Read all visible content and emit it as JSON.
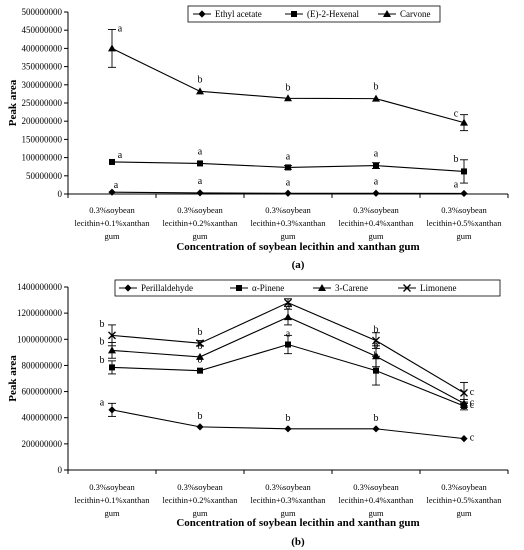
{
  "chart_data": [
    {
      "type": "line",
      "panel_label": "(a)",
      "categories": [
        [
          "0.3%soybean",
          "lecithin+0.1%xanthan",
          "gum"
        ],
        [
          "0.3%soybean",
          "lecithin+0.2%xanthan",
          "gum"
        ],
        [
          "0.3%soybean",
          "lecithin+0.3%xanthan",
          "gum"
        ],
        [
          "0.3%soybean",
          "lecithin+0.4%xanthan",
          "gum"
        ],
        [
          "0.3%soybean",
          "lecithin+0.5%xanthan",
          "gum"
        ]
      ],
      "xlabel": "Concentration of soybean lecithin and xanthan gum",
      "ylabel": "Peak area",
      "ylim": [
        0,
        500000000
      ],
      "yticks": [
        "0",
        "50000000",
        "100000000",
        "150000000",
        "200000000",
        "250000000",
        "300000000",
        "350000000",
        "400000000",
        "450000000",
        "500000000"
      ],
      "legend_position": "top-right",
      "series": [
        {
          "name": "Ethyl acetate",
          "marker": "diamond",
          "values": [
            5000000,
            3000000,
            2000000,
            2000000,
            1500000
          ],
          "errors": [
            0,
            0,
            0,
            0,
            0
          ],
          "letters": [
            "a",
            "a",
            "a",
            "a",
            "a"
          ]
        },
        {
          "name": "(E)-2-Hexenal",
          "marker": "square",
          "values": [
            88000000,
            84000000,
            73000000,
            78000000,
            62000000
          ],
          "errors": [
            0,
            0,
            5000000,
            8000000,
            32000000
          ],
          "letters": [
            "a",
            "a",
            "a",
            "a",
            "b"
          ]
        },
        {
          "name": "Carvone",
          "marker": "triangle",
          "values": [
            400000000,
            282000000,
            263000000,
            262000000,
            196000000
          ],
          "errors": [
            52000000,
            0,
            0,
            0,
            22000000
          ],
          "letters": [
            "a",
            "b",
            "b",
            "b",
            "c"
          ]
        }
      ]
    },
    {
      "type": "line",
      "panel_label": "(b)",
      "categories": [
        [
          "0.3%soybean",
          "lecithin+0.1%xanthan",
          "gum"
        ],
        [
          "0.3%soybean",
          "lecithin+0.2%xanthan",
          "gum"
        ],
        [
          "0.3%soybean",
          "lecithin+0.3%xanthan",
          "gum"
        ],
        [
          "0.3%soybean",
          "lecithin+0.4%xanthan",
          "gum"
        ],
        [
          "0.3%soybean",
          "lecithin+0.5%xanthan",
          "gum"
        ]
      ],
      "xlabel": "Concentration of soybean lecithin and xanthan gum",
      "ylabel": "Peak area",
      "ylim": [
        0,
        1400000000
      ],
      "yticks": [
        "0",
        "200000000",
        "400000000",
        "600000000",
        "800000000",
        "1000000000",
        "1200000000",
        "1400000000"
      ],
      "legend_position": "top",
      "series": [
        {
          "name": "Perillaldehyde",
          "marker": "diamond",
          "values": [
            460000000,
            330000000,
            315000000,
            315000000,
            240000000
          ],
          "errors": [
            50000000,
            0,
            0,
            0,
            0
          ],
          "letters": [
            "a",
            "b",
            "b",
            "b",
            "c"
          ]
        },
        {
          "name": "α-Pinene",
          "marker": "square",
          "values": [
            785000000,
            760000000,
            960000000,
            760000000,
            490000000
          ],
          "errors": [
            50000000,
            0,
            70000000,
            110000000,
            30000000
          ],
          "letters": [
            "b",
            "b",
            "a",
            "b",
            "c"
          ]
        },
        {
          "name": "3-Carene",
          "marker": "triangle",
          "values": [
            915000000,
            865000000,
            1170000000,
            870000000,
            510000000
          ],
          "errors": [
            60000000,
            0,
            60000000,
            80000000,
            30000000
          ],
          "letters": [
            "b",
            "b",
            "a",
            "b",
            "c"
          ]
        },
        {
          "name": "Limonene",
          "marker": "x",
          "values": [
            1030000000,
            970000000,
            1280000000,
            990000000,
            590000000
          ],
          "errors": [
            80000000,
            20000000,
            30000000,
            60000000,
            80000000
          ],
          "letters": [
            "b",
            "b",
            "a",
            "b",
            "c"
          ]
        }
      ]
    }
  ]
}
